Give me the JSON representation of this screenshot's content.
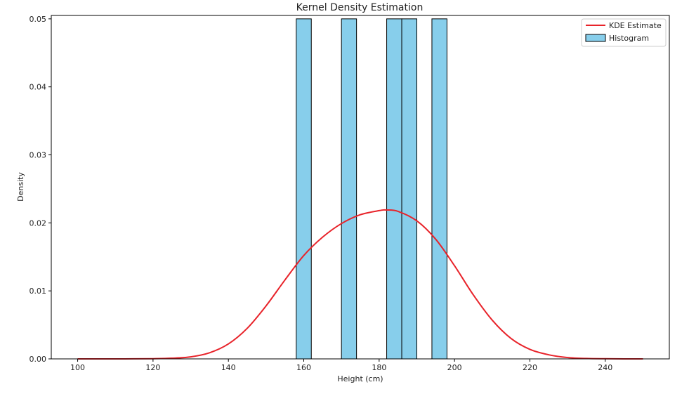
{
  "chart_data": {
    "type": "histogram+kde",
    "title": "Kernel Density Estimation",
    "xlabel": "Height (cm)",
    "ylabel": "Density",
    "xlim": [
      93,
      257
    ],
    "ylim": [
      0,
      0.0505
    ],
    "xticks": [
      {
        "value": 100,
        "label": "100"
      },
      {
        "value": 120,
        "label": "120"
      },
      {
        "value": 140,
        "label": "140"
      },
      {
        "value": 160,
        "label": "160"
      },
      {
        "value": 180,
        "label": "180"
      },
      {
        "value": 200,
        "label": "200"
      },
      {
        "value": 220,
        "label": "220"
      },
      {
        "value": 240,
        "label": "240"
      }
    ],
    "yticks": [
      {
        "value": 0.0,
        "label": "0.00"
      },
      {
        "value": 0.01,
        "label": "0.01"
      },
      {
        "value": 0.02,
        "label": "0.02"
      },
      {
        "value": 0.03,
        "label": "0.03"
      },
      {
        "value": 0.04,
        "label": "0.04"
      },
      {
        "value": 0.05,
        "label": "0.05"
      }
    ],
    "histogram": {
      "name": "Histogram",
      "color": "#87CEEB",
      "edge_color": "#000000",
      "bins": [
        {
          "x0": 158,
          "x1": 162,
          "density": 0.05
        },
        {
          "x0": 170,
          "x1": 174,
          "density": 0.05
        },
        {
          "x0": 182,
          "x1": 186,
          "density": 0.05
        },
        {
          "x0": 186,
          "x1": 190,
          "density": 0.05
        },
        {
          "x0": 194,
          "x1": 198,
          "density": 0.05
        }
      ]
    },
    "kde": {
      "name": "KDE Estimate",
      "color": "#e8232a",
      "x": [
        100,
        105,
        110,
        115,
        120,
        125,
        130,
        135,
        140,
        145,
        150,
        155,
        160,
        165,
        170,
        175,
        180,
        182,
        185,
        190,
        195,
        200,
        205,
        210,
        215,
        220,
        225,
        230,
        235,
        240,
        245,
        250
      ],
      "y": [
        0.0,
        0.0,
        0.0,
        1e-05,
        3e-05,
        0.0001,
        0.0003,
        0.0009,
        0.0022,
        0.0045,
        0.0078,
        0.0116,
        0.0152,
        0.0179,
        0.0199,
        0.0212,
        0.0218,
        0.0219,
        0.0217,
        0.0203,
        0.0176,
        0.0137,
        0.0094,
        0.0057,
        0.003,
        0.0014,
        0.0006,
        0.0002,
        6e-05,
        2e-05,
        0.0,
        0.0
      ]
    },
    "legend": {
      "position": "top-right",
      "entries": [
        "KDE Estimate",
        "Histogram"
      ]
    },
    "grid": false
  }
}
